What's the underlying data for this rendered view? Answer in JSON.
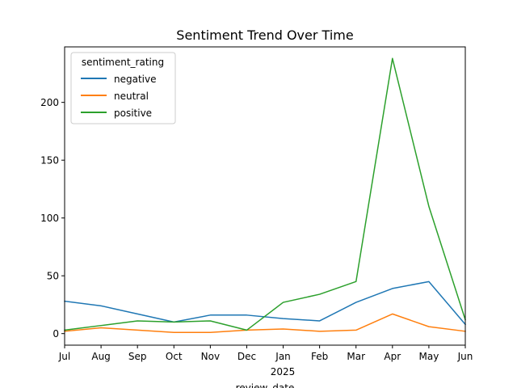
{
  "chart_data": {
    "type": "line",
    "title": "Sentiment Trend Over Time",
    "xlabel": "review_date",
    "ylabel": "",
    "x": [
      "2024-07",
      "2024-08",
      "2024-09",
      "2024-10",
      "2024-11",
      "2024-12",
      "2025-01",
      "2025-02",
      "2025-03",
      "2025-04",
      "2025-05",
      "2025-06"
    ],
    "x_tick_labels": [
      "Jul",
      "Aug",
      "Sep",
      "Oct",
      "Nov",
      "Dec",
      "Jan",
      "Feb",
      "Mar",
      "Apr",
      "May",
      "Jun"
    ],
    "x_year_label": "2025",
    "y_ticks": [
      0,
      50,
      100,
      150,
      200
    ],
    "ylim": [
      -10,
      248
    ],
    "grid": false,
    "legend": {
      "title": "sentiment_rating",
      "placement": "top-left"
    },
    "series": [
      {
        "name": "negative",
        "color": "#1f77b4",
        "values": [
          28,
          24,
          17,
          10,
          16,
          16,
          13,
          11,
          27,
          39,
          45,
          8
        ]
      },
      {
        "name": "neutral",
        "color": "#ff7f0e",
        "values": [
          2,
          5,
          3,
          1,
          1,
          3,
          4,
          2,
          3,
          17,
          6,
          2
        ]
      },
      {
        "name": "positive",
        "color": "#2ca02c",
        "values": [
          3,
          7,
          11,
          10,
          11,
          3,
          27,
          34,
          45,
          238,
          110,
          12
        ]
      }
    ]
  }
}
